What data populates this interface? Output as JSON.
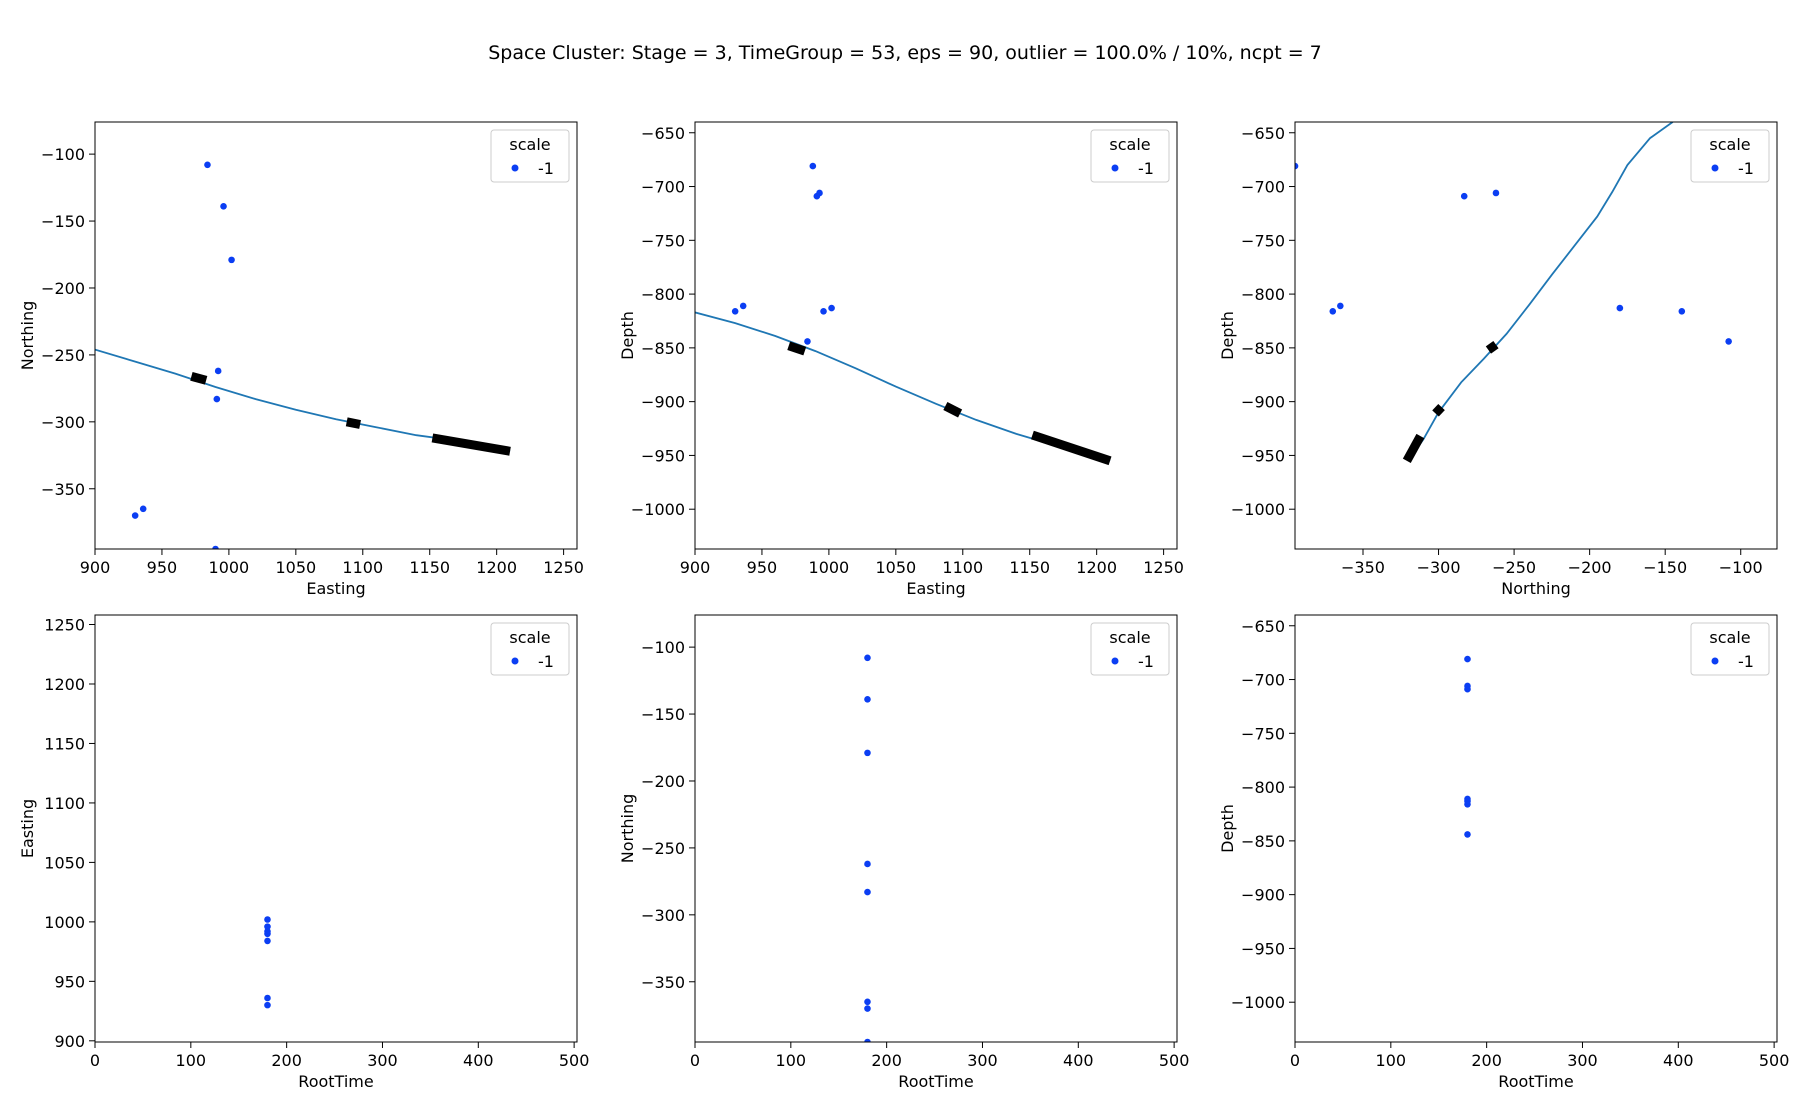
{
  "title": "Space Cluster: Stage = 3, TimeGroup = 53, eps = 90, outlier = 100.0% / 10%, ncpt = 7",
  "colors": {
    "points": "#0b3ef3",
    "well": "#1f77b4",
    "segment": "#000000",
    "frame": "#000000"
  },
  "chart_data": [
    {
      "type": "scatter",
      "xlabel": "Easting",
      "ylabel": "Northing",
      "xlim": [
        900,
        1260
      ],
      "ylim": [
        -395,
        -76
      ],
      "xticks": [
        900,
        950,
        1000,
        1050,
        1100,
        1150,
        1200,
        1250
      ],
      "yticks": [
        -100,
        -150,
        -200,
        -250,
        -300,
        -350
      ],
      "legend": {
        "title": "scale",
        "labels": [
          "-1"
        ],
        "position": "top-right"
      },
      "points": [
        [
          984,
          -108
        ],
        [
          996,
          -139
        ],
        [
          1002,
          -179
        ],
        [
          992,
          -262
        ],
        [
          991,
          -283
        ],
        [
          936,
          -365
        ],
        [
          930,
          -370
        ],
        [
          990,
          -395
        ]
      ],
      "well": [
        [
          900,
          -246
        ],
        [
          930,
          -255
        ],
        [
          960,
          -264
        ],
        [
          990,
          -274
        ],
        [
          1020,
          -283
        ],
        [
          1050,
          -291
        ],
        [
          1080,
          -298
        ],
        [
          1110,
          -304
        ],
        [
          1140,
          -310
        ],
        [
          1170,
          -314
        ],
        [
          1210,
          -322
        ]
      ],
      "segments": [
        [
          [
            972,
            -266
          ],
          [
            983,
            -269
          ]
        ],
        [
          [
            1088,
            -300
          ],
          [
            1098,
            -302
          ]
        ],
        [
          [
            1152,
            -312
          ],
          [
            1210,
            -322
          ]
        ]
      ]
    },
    {
      "type": "scatter",
      "xlabel": "Easting",
      "ylabel": "Depth",
      "xlim": [
        900,
        1260
      ],
      "ylim": [
        -1037,
        -640
      ],
      "xticks": [
        900,
        950,
        1000,
        1050,
        1100,
        1150,
        1200,
        1250
      ],
      "yticks": [
        -650,
        -700,
        -750,
        -800,
        -850,
        -900,
        -950,
        -1000
      ],
      "legend": {
        "title": "scale",
        "labels": [
          "-1"
        ],
        "position": "top-right"
      },
      "points": [
        [
          988,
          -681
        ],
        [
          993,
          -706
        ],
        [
          991,
          -709
        ],
        [
          936,
          -811
        ],
        [
          930,
          -816
        ],
        [
          996,
          -816
        ],
        [
          1002,
          -813
        ],
        [
          984,
          -844
        ]
      ],
      "well": [
        [
          900,
          -817
        ],
        [
          930,
          -827
        ],
        [
          960,
          -839
        ],
        [
          990,
          -853
        ],
        [
          1020,
          -869
        ],
        [
          1050,
          -886
        ],
        [
          1080,
          -902
        ],
        [
          1110,
          -917
        ],
        [
          1140,
          -930
        ],
        [
          1170,
          -941
        ],
        [
          1210,
          -955
        ]
      ],
      "segments": [
        [
          [
            970,
            -848
          ],
          [
            982,
            -853
          ]
        ],
        [
          [
            1087,
            -904
          ],
          [
            1098,
            -911
          ]
        ],
        [
          [
            1152,
            -931
          ],
          [
            1210,
            -955
          ]
        ]
      ]
    },
    {
      "type": "scatter",
      "xlabel": "Northing",
      "ylabel": "Depth",
      "xlim": [
        -395,
        -76
      ],
      "ylim": [
        -1037,
        -640
      ],
      "xticks": [
        -350,
        -300,
        -250,
        -200,
        -150,
        -100
      ],
      "yticks": [
        -650,
        -700,
        -750,
        -800,
        -850,
        -900,
        -950,
        -1000
      ],
      "legend": {
        "title": "scale",
        "labels": [
          "-1"
        ],
        "position": "top-right"
      },
      "points": [
        [
          -395,
          -681
        ],
        [
          -283,
          -709
        ],
        [
          -262,
          -706
        ],
        [
          -370,
          -816
        ],
        [
          -365,
          -811
        ],
        [
          -180,
          -813
        ],
        [
          -139,
          -816
        ],
        [
          -108,
          -844
        ]
      ],
      "well": [
        [
          -320,
          -955
        ],
        [
          -310,
          -935
        ],
        [
          -300,
          -910
        ],
        [
          -285,
          -882
        ],
        [
          -270,
          -860
        ],
        [
          -255,
          -837
        ],
        [
          -240,
          -810
        ],
        [
          -225,
          -782
        ],
        [
          -210,
          -755
        ],
        [
          -195,
          -728
        ],
        [
          -185,
          -705
        ],
        [
          -175,
          -680
        ],
        [
          -160,
          -655
        ],
        [
          -145,
          -640
        ]
      ],
      "segments": [
        [
          [
            -321,
            -955
          ],
          [
            -312,
            -932
          ]
        ],
        [
          [
            -302,
            -911
          ],
          [
            -298,
            -905
          ]
        ],
        [
          [
            -267,
            -852
          ],
          [
            -262,
            -847
          ]
        ]
      ]
    },
    {
      "type": "scatter",
      "xlabel": "RootTime",
      "ylabel": "Easting",
      "xlim": [
        0,
        503
      ],
      "ylim": [
        899,
        1258
      ],
      "xticks": [
        0,
        100,
        200,
        300,
        400,
        500
      ],
      "yticks": [
        900,
        950,
        1000,
        1050,
        1100,
        1150,
        1200,
        1250
      ],
      "legend": {
        "title": "scale",
        "labels": [
          "-1"
        ],
        "position": "top-right"
      },
      "points": [
        [
          180,
          1002
        ],
        [
          180,
          996
        ],
        [
          180,
          992
        ],
        [
          180,
          990
        ],
        [
          180,
          984
        ],
        [
          180,
          936
        ],
        [
          180,
          930
        ]
      ]
    },
    {
      "type": "scatter",
      "xlabel": "RootTime",
      "ylabel": "Northing",
      "xlim": [
        0,
        503
      ],
      "ylim": [
        -395,
        -76
      ],
      "xticks": [
        0,
        100,
        200,
        300,
        400,
        500
      ],
      "yticks": [
        -100,
        -150,
        -200,
        -250,
        -300,
        -350
      ],
      "legend": {
        "title": "scale",
        "labels": [
          "-1"
        ],
        "position": "top-right"
      },
      "points": [
        [
          180,
          -108
        ],
        [
          180,
          -139
        ],
        [
          180,
          -179
        ],
        [
          180,
          -262
        ],
        [
          180,
          -283
        ],
        [
          180,
          -365
        ],
        [
          180,
          -370
        ],
        [
          180,
          -395
        ]
      ]
    },
    {
      "type": "scatter",
      "xlabel": "RootTime",
      "ylabel": "Depth",
      "xlim": [
        0,
        503
      ],
      "ylim": [
        -1037,
        -640
      ],
      "xticks": [
        0,
        100,
        200,
        300,
        400,
        500
      ],
      "yticks": [
        -650,
        -700,
        -750,
        -800,
        -850,
        -900,
        -950,
        -1000
      ],
      "legend": {
        "title": "scale",
        "labels": [
          "-1"
        ],
        "position": "top-right"
      },
      "points": [
        [
          180,
          -681
        ],
        [
          180,
          -706
        ],
        [
          180,
          -709
        ],
        [
          180,
          -811
        ],
        [
          180,
          -813
        ],
        [
          180,
          -816
        ],
        [
          180,
          -844
        ]
      ]
    }
  ]
}
